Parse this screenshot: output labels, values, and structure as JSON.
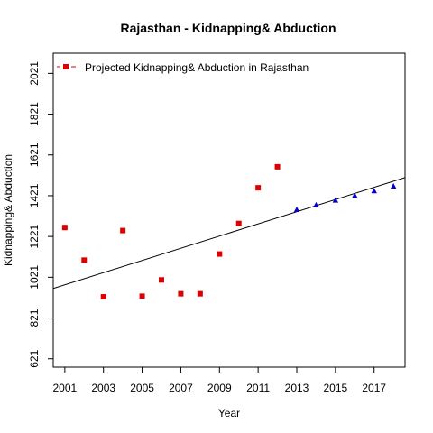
{
  "chart_data": {
    "type": "scatter",
    "title": "Rajasthan  -  Kidnapping& Abduction",
    "xlabel": "Year",
    "ylabel": "Kidnapping& Abduction",
    "xlim": [
      2000.4,
      2018.6
    ],
    "ylim": [
      580,
      2120
    ],
    "x_ticks": [
      2001,
      2003,
      2005,
      2007,
      2009,
      2011,
      2013,
      2015,
      2017
    ],
    "y_ticks": [
      621,
      821,
      1021,
      1221,
      1421,
      1621,
      1821,
      2021
    ],
    "legend": {
      "position": "top-left",
      "label": "Projected Kidnapping& Abduction  in  Rajasthan"
    },
    "series": [
      {
        "name": "Projected Kidnapping& Abduction  in  Rajasthan",
        "marker": "square",
        "color": "#dd0000",
        "x": [
          2001,
          2002,
          2003,
          2004,
          2005,
          2006,
          2007,
          2008,
          2009,
          2010,
          2011,
          2012
        ],
        "y": [
          1265,
          1105,
          925,
          1250,
          928,
          1008,
          940,
          940,
          1135,
          1285,
          1460,
          1563
        ]
      },
      {
        "marker": "triangle",
        "color": "#0000cc",
        "x": [
          2013,
          2014,
          2015,
          2016,
          2017,
          2018
        ],
        "y": [
          1352,
          1375,
          1398,
          1421,
          1444,
          1467
        ]
      }
    ],
    "trend_line": {
      "x": [
        2000.4,
        2018.6
      ],
      "y": [
        966,
        1510
      ],
      "color": "#000000"
    }
  }
}
